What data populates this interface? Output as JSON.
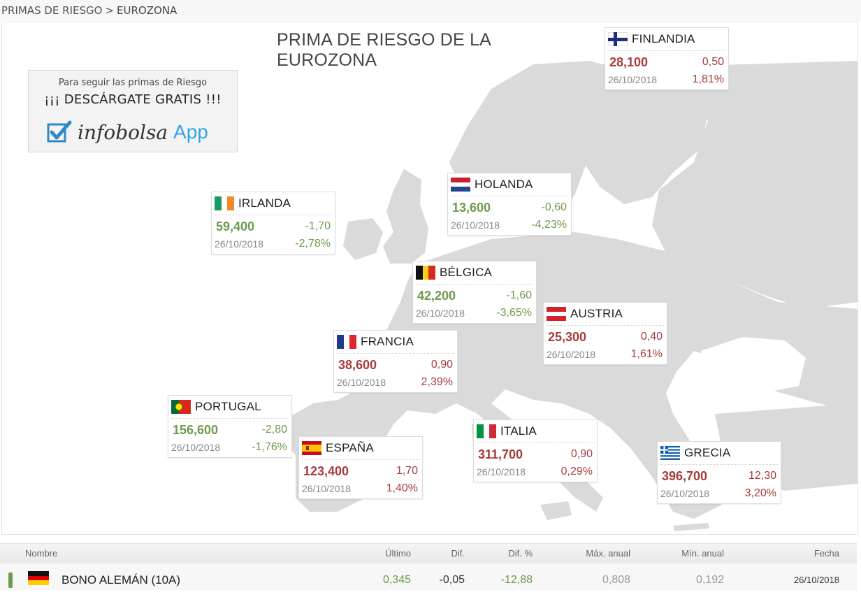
{
  "breadcrumb": {
    "parent": "PRIMAS DE RIESGO",
    "separator": ">",
    "current": "EUROZONA"
  },
  "map": {
    "title": "PRIMA DE RIESGO DE LA EUROZONA"
  },
  "promo": {
    "line1": "Para seguir las primas de Riesgo",
    "line2": "¡¡¡ DESCÁRGATE GRATIS !!!",
    "brand": "infobolsa",
    "app": "App",
    "check_color": "#2f89c7",
    "app_color": "#2ea6e6"
  },
  "colors": {
    "up": "#a83c3c",
    "down": "#6e9a4d",
    "land": "#dadada",
    "sea": "#ffffff"
  },
  "countries": [
    {
      "name": "FINLANDIA",
      "flag": "finland-flag",
      "value": "28,100",
      "dif": "0,50",
      "date": "26/10/2018",
      "pct": "1,81%",
      "trend": "up"
    },
    {
      "name": "HOLANDA",
      "flag": "netherlands-flag",
      "value": "13,600",
      "dif": "-0,60",
      "date": "26/10/2018",
      "pct": "-4,23%",
      "trend": "down"
    },
    {
      "name": "IRLANDA",
      "flag": "ireland-flag",
      "value": "59,400",
      "dif": "-1,70",
      "date": "26/10/2018",
      "pct": "-2,78%",
      "trend": "down"
    },
    {
      "name": "BÉLGICA",
      "flag": "belgium-flag",
      "value": "42,200",
      "dif": "-1,60",
      "date": "26/10/2018",
      "pct": "-3,65%",
      "trend": "down"
    },
    {
      "name": "AUSTRIA",
      "flag": "austria-flag",
      "value": "25,300",
      "dif": "0,40",
      "date": "26/10/2018",
      "pct": "1,61%",
      "trend": "up"
    },
    {
      "name": "FRANCIA",
      "flag": "france-flag",
      "value": "38,600",
      "dif": "0,90",
      "date": "26/10/2018",
      "pct": "2,39%",
      "trend": "up"
    },
    {
      "name": "PORTUGAL",
      "flag": "portugal-flag",
      "value": "156,600",
      "dif": "-2,80",
      "date": "26/10/2018",
      "pct": "-1,76%",
      "trend": "down"
    },
    {
      "name": "ESPAÑA",
      "flag": "spain-flag",
      "value": "123,400",
      "dif": "1,70",
      "date": "26/10/2018",
      "pct": "1,40%",
      "trend": "up"
    },
    {
      "name": "ITALIA",
      "flag": "italy-flag",
      "value": "311,700",
      "dif": "0,90",
      "date": "26/10/2018",
      "pct": "0,29%",
      "trend": "up"
    },
    {
      "name": "GRECIA",
      "flag": "greece-flag",
      "value": "396,700",
      "dif": "12,30",
      "date": "26/10/2018",
      "pct": "3,20%",
      "trend": "up"
    }
  ],
  "table": {
    "headers": {
      "nombre": "Nombre",
      "ultimo": "Último",
      "dif": "Dif.",
      "dif_pct": "Dif. %",
      "max": "Máx. anual",
      "min": "Mín. anual",
      "fecha": "Fecha"
    },
    "rows": [
      {
        "flag": "germany-flag",
        "nombre": "BONO ALEMÁN (10A)",
        "ultimo": "0,345",
        "dif": "-0,05",
        "dif_pct": "-12,88",
        "max": "0,808",
        "min": "0,192",
        "fecha": "26/10/2018",
        "trend": "down"
      }
    ]
  }
}
